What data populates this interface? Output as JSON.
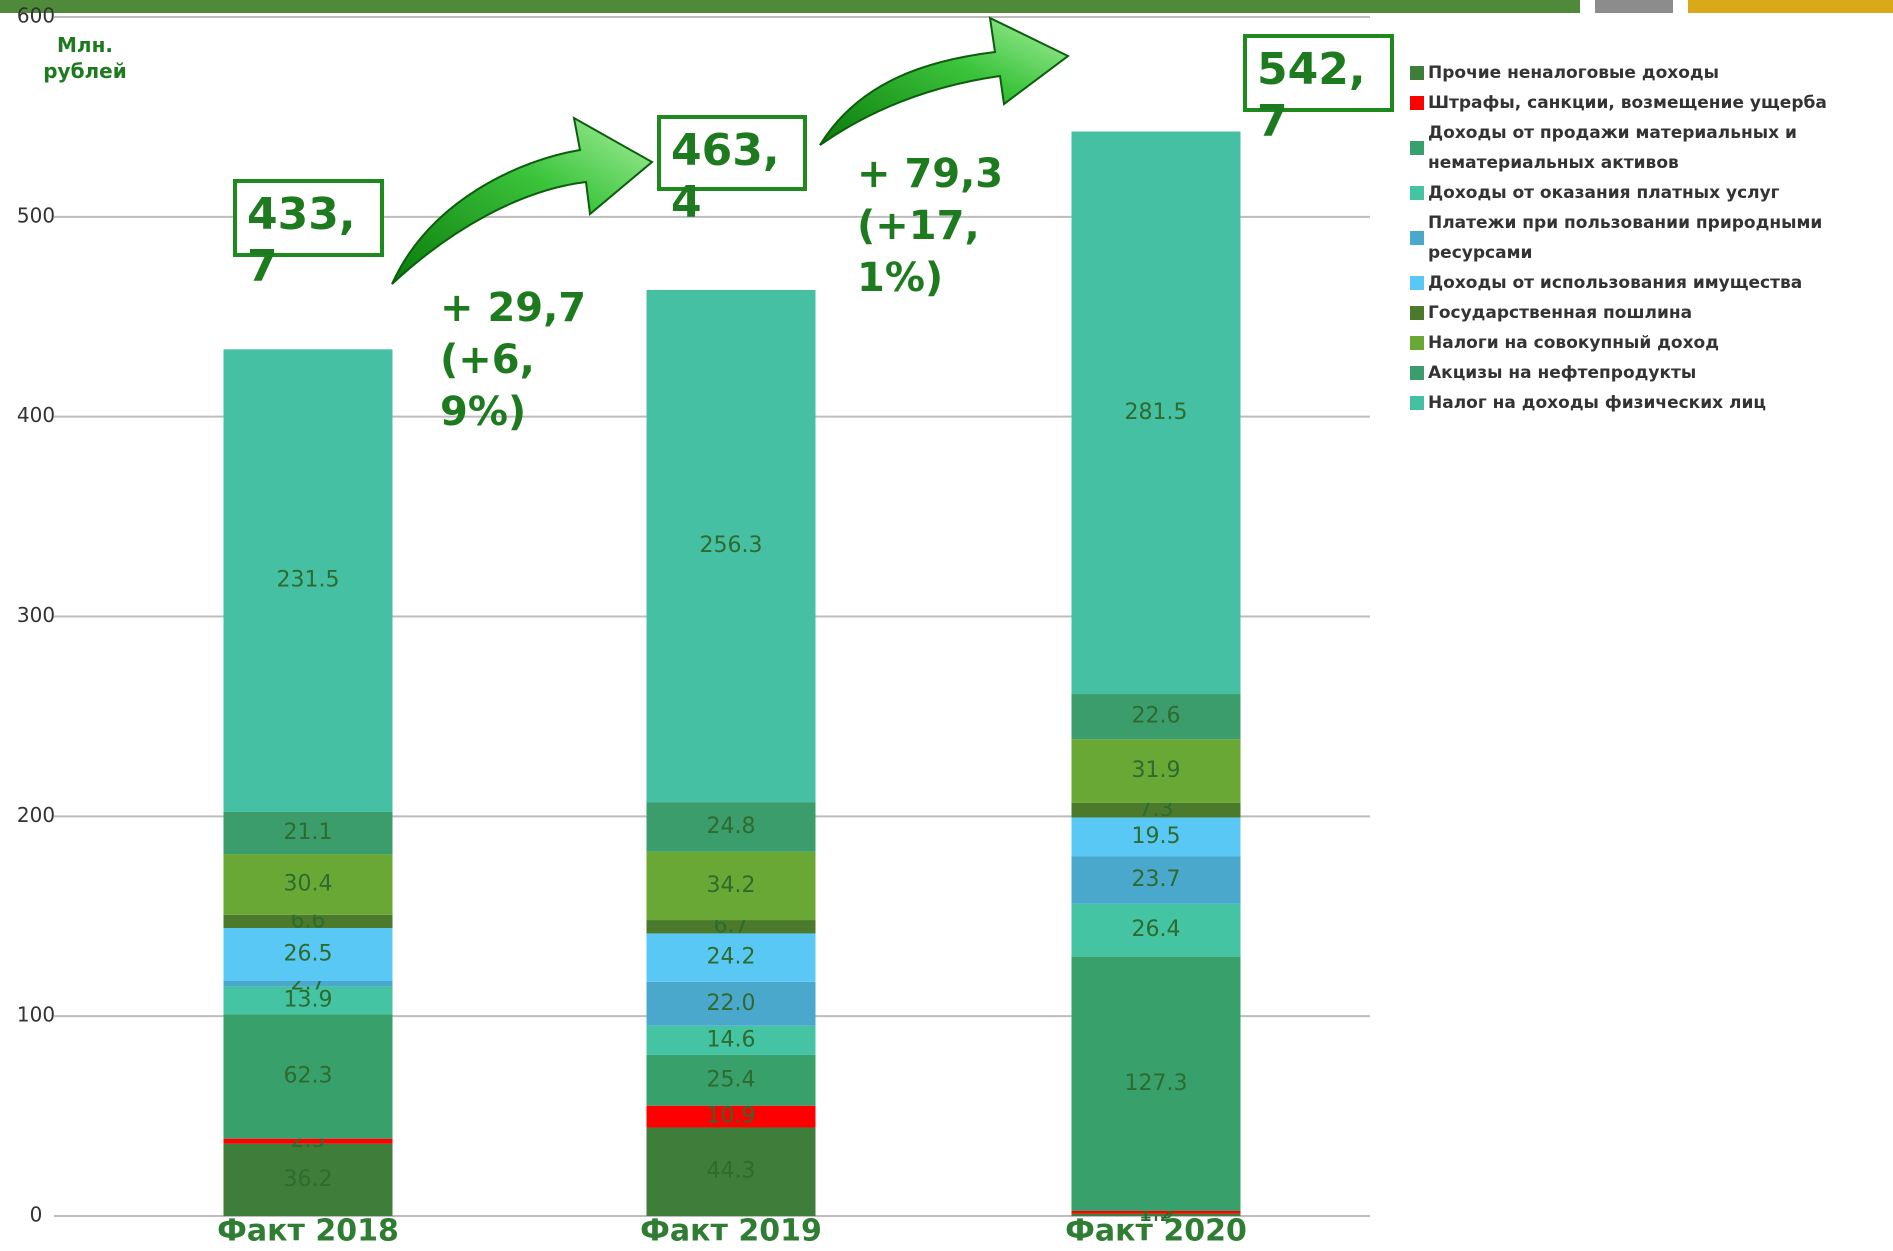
{
  "chart_data": {
    "type": "stacked-bar",
    "y_label": "Млн. рублей",
    "categories": [
      "Факт 2018",
      "Факт 2019",
      "Факт 2020"
    ],
    "ylim": [
      0,
      600
    ],
    "yticks": [
      0,
      100,
      200,
      300,
      400,
      500,
      600
    ],
    "grid": true,
    "series": [
      {
        "name": "Прочие неналоговые доходы",
        "color": "#3f7d3a",
        "values": [
          36.2,
          44.3,
          1.2
        ],
        "value_labels": [
          "36.2",
          "44.3",
          "1.2"
        ]
      },
      {
        "name": "Штрафы, санкции, возмещение ущерба",
        "color": "#ff0000",
        "values": [
          2.5,
          10.9,
          1.3
        ],
        "value_labels": [
          "2.5",
          "10.9",
          "1.3"
        ]
      },
      {
        "name": "Доходы от продажи материальных и нематериальных активов",
        "color": "#38a06a",
        "values": [
          62.3,
          25.4,
          127.3
        ],
        "value_labels": [
          "62.3",
          "25.4",
          "127.3"
        ]
      },
      {
        "name": "Доходы от оказания платных услуг",
        "color": "#44c4a2",
        "values": [
          13.9,
          14.6,
          26.4
        ],
        "value_labels": [
          "13.9",
          "14.6",
          "26.4"
        ]
      },
      {
        "name": "Платежи при пользовании природными ресурсами",
        "color": "#4aa8cc",
        "values": [
          2.7,
          22.0,
          23.7
        ],
        "value_labels": [
          "2.7",
          "22.0",
          "23.7"
        ]
      },
      {
        "name": "Доходы от использования имущества",
        "color": "#5ac8f4",
        "values": [
          26.5,
          24.2,
          19.5
        ],
        "value_labels": [
          "26.5",
          "24.2",
          "19.5"
        ]
      },
      {
        "name": "Государственная пошлина",
        "color": "#4b7a2c",
        "values": [
          6.6,
          6.7,
          7.3
        ],
        "value_labels": [
          "6.6",
          "6.7",
          "7.3"
        ]
      },
      {
        "name": "Налоги на совокупный доход",
        "color": "#6aa836",
        "values": [
          30.4,
          34.2,
          31.9
        ],
        "value_labels": [
          "30.4",
          "34.2",
          "31.9"
        ]
      },
      {
        "name": "Акцизы на нефтепродукты",
        "color": "#3b9c6c",
        "values": [
          21.1,
          24.8,
          22.6
        ],
        "value_labels": [
          "21.1",
          "24.8",
          "22.6"
        ]
      },
      {
        "name": "Налог на доходы физических лиц",
        "color": "#45c0a2",
        "values": [
          231.5,
          256.3,
          281.5
        ],
        "value_labels": [
          "231.5",
          "256.3",
          "281.5"
        ]
      }
    ],
    "annotations": [
      "433,7",
      "463,4",
      "542,7",
      "+ 29,7 (+6,9%)",
      "+ 79,3 (+17,1%)"
    ]
  }
}
